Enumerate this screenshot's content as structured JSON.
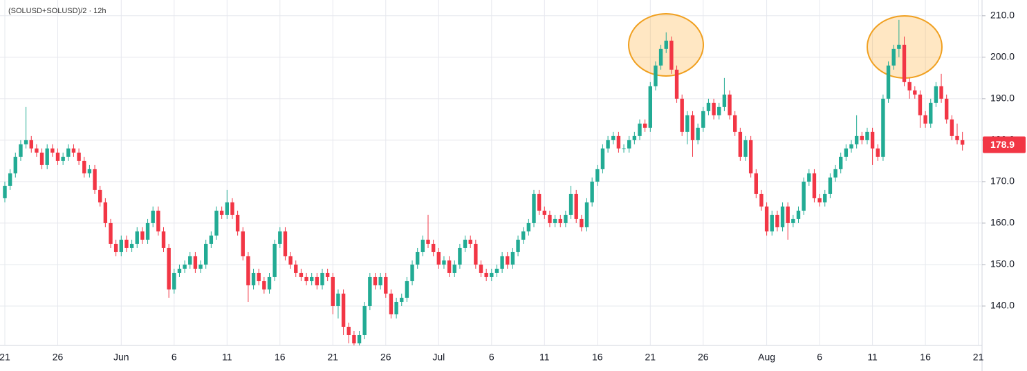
{
  "chart_data": {
    "type": "candlestick",
    "title": "(SOLUSD+SOLUSD)/2 · 12h",
    "up_color": "#22ab94",
    "down_color": "#f23645",
    "grid": true,
    "ylim": [
      130.5,
      213.8
    ],
    "yticks": [
      {
        "value": 140,
        "label": "140.0"
      },
      {
        "value": 150,
        "label": "150.0"
      },
      {
        "value": 160,
        "label": "160.0"
      },
      {
        "value": 170,
        "label": "170.0"
      },
      {
        "value": 180,
        "label": "180.0"
      },
      {
        "value": 190,
        "label": "190.0"
      },
      {
        "value": 200,
        "label": "200.0"
      },
      {
        "value": 210,
        "label": "210.0"
      }
    ],
    "categories": [
      "21",
      null,
      null,
      null,
      null,
      null,
      null,
      null,
      null,
      null,
      "26",
      null,
      null,
      null,
      null,
      null,
      null,
      null,
      null,
      null,
      null,
      null,
      "Jun",
      null,
      null,
      null,
      null,
      null,
      null,
      null,
      null,
      null,
      "6",
      null,
      null,
      null,
      null,
      null,
      null,
      null,
      null,
      null,
      "11",
      null,
      null,
      null,
      null,
      null,
      null,
      null,
      null,
      null,
      "16",
      null,
      null,
      null,
      null,
      null,
      null,
      null,
      null,
      null,
      "21",
      null,
      null,
      null,
      null,
      null,
      null,
      null,
      null,
      null,
      "26",
      null,
      null,
      null,
      null,
      null,
      null,
      null,
      null,
      null,
      "Jul",
      null,
      null,
      null,
      null,
      null,
      null,
      null,
      null,
      null,
      "6",
      null,
      null,
      null,
      null,
      null,
      null,
      null,
      null,
      null,
      "11",
      null,
      null,
      null,
      null,
      null,
      null,
      null,
      null,
      null,
      "16",
      null,
      null,
      null,
      null,
      null,
      null,
      null,
      null,
      null,
      "21",
      null,
      null,
      null,
      null,
      null,
      null,
      null,
      null,
      null,
      "26",
      null,
      null,
      null,
      null,
      null,
      null,
      null,
      null,
      null,
      null,
      null,
      "Aug",
      null,
      null,
      null,
      null,
      null,
      null,
      null,
      null,
      null,
      "6",
      null,
      null,
      null,
      null,
      null,
      null,
      null,
      null,
      null,
      "11",
      null,
      null,
      null,
      null,
      null,
      null,
      null,
      null,
      null,
      "16",
      null,
      null,
      null,
      null,
      null,
      null,
      null,
      null,
      null,
      "21"
    ],
    "open": [
      166,
      169,
      172,
      176,
      179,
      180,
      178,
      177,
      174,
      178,
      177,
      175,
      176,
      178,
      177,
      175,
      172,
      173,
      168,
      165,
      160,
      155,
      153,
      156,
      154,
      155,
      158,
      156,
      160,
      163,
      158,
      154,
      144,
      148,
      149,
      150,
      152,
      149,
      150,
      155,
      157,
      163,
      162,
      165,
      162,
      158,
      152,
      145,
      148,
      146,
      144,
      147,
      155,
      158,
      152,
      150,
      148,
      147,
      146,
      147,
      145,
      148,
      147,
      140,
      143,
      135,
      133,
      131,
      133,
      140,
      147,
      145,
      147,
      143,
      138,
      141,
      142,
      146,
      150,
      153,
      156,
      155,
      153,
      150,
      151,
      148,
      150,
      154,
      156,
      155,
      150,
      148,
      147,
      148,
      149,
      152,
      150,
      153,
      156,
      158,
      160,
      167,
      163,
      162,
      160,
      161,
      160,
      162,
      167,
      161,
      159,
      165,
      170,
      173,
      178,
      180,
      181,
      178,
      178,
      180,
      181,
      184,
      183,
      193,
      198,
      202,
      204,
      197,
      190,
      182,
      186,
      180,
      183,
      187,
      189,
      186,
      188,
      191,
      186,
      182,
      176,
      180,
      172,
      167,
      164,
      158,
      162,
      159,
      164,
      160,
      161,
      163,
      170,
      172,
      166,
      165,
      167,
      171,
      173,
      176,
      178,
      179,
      181,
      180,
      182,
      178,
      176,
      190,
      198,
      202,
      203,
      194,
      192,
      191,
      186,
      184,
      189,
      193,
      190,
      185,
      181,
      180,
      null,
      null,
      null
    ],
    "high": [
      170,
      173,
      177,
      180,
      188,
      181,
      179,
      178,
      179,
      179,
      178,
      177,
      179,
      179,
      178,
      176,
      174,
      174,
      169,
      166,
      161,
      156,
      157,
      157,
      156,
      159,
      159,
      161,
      164,
      164,
      159,
      155,
      149,
      150,
      151,
      153,
      153,
      151,
      156,
      158,
      164,
      164,
      168,
      166,
      163,
      159,
      153,
      149,
      149,
      147,
      148,
      156,
      159,
      159,
      153,
      151,
      149,
      148,
      148,
      148,
      149,
      149,
      148,
      144,
      144,
      136,
      134,
      134,
      141,
      148,
      148,
      148,
      148,
      144,
      142,
      143,
      147,
      151,
      154,
      157,
      162,
      156,
      154,
      152,
      152,
      151,
      155,
      157,
      157,
      156,
      151,
      149,
      149,
      150,
      153,
      153,
      154,
      157,
      159,
      161,
      168,
      168,
      164,
      163,
      162,
      162,
      163,
      169,
      168,
      162,
      166,
      171,
      174,
      179,
      181,
      182,
      182,
      179,
      181,
      182,
      185,
      185,
      194,
      199,
      203,
      206,
      205,
      198,
      191,
      187,
      187,
      184,
      188,
      190,
      190,
      189,
      195,
      192,
      187,
      183,
      181,
      181,
      173,
      168,
      165,
      163,
      163,
      165,
      165,
      162,
      164,
      171,
      173,
      173,
      167,
      168,
      172,
      174,
      177,
      179,
      180,
      186,
      182,
      183,
      183,
      179,
      191,
      199,
      203,
      209,
      205,
      195,
      193,
      192,
      187,
      190,
      194,
      196,
      191,
      186,
      184,
      182,
      null,
      null,
      null
    ],
    "low": [
      165,
      168,
      171,
      175,
      178,
      177,
      176,
      173,
      173,
      176,
      174,
      174,
      175,
      176,
      174,
      171,
      171,
      167,
      164,
      159,
      154,
      152,
      152,
      153,
      153,
      154,
      155,
      155,
      159,
      157,
      153,
      142,
      143,
      147,
      148,
      149,
      148,
      148,
      149,
      154,
      156,
      161,
      161,
      161,
      157,
      151,
      141,
      144,
      145,
      143,
      143,
      146,
      154,
      151,
      149,
      147,
      146,
      145,
      145,
      144,
      144,
      146,
      138,
      137,
      133,
      131,
      130.5,
      130.5,
      132,
      139,
      144,
      144,
      142,
      137,
      137,
      140,
      141,
      145,
      149,
      152,
      154,
      152,
      149,
      149,
      147,
      147,
      149,
      153,
      154,
      149,
      147,
      146,
      146,
      147,
      148,
      149,
      149,
      152,
      155,
      157,
      159,
      162,
      161,
      159,
      159,
      159,
      159,
      161,
      160,
      158,
      158,
      164,
      169,
      172,
      177,
      179,
      177,
      177,
      177,
      179,
      180,
      182,
      182,
      192,
      197,
      201,
      196,
      189,
      181,
      179,
      176,
      179,
      182,
      186,
      185,
      185,
      187,
      185,
      181,
      175,
      175,
      171,
      166,
      163,
      157,
      157,
      158,
      158,
      156,
      159,
      160,
      162,
      169,
      165,
      164,
      164,
      166,
      170,
      172,
      175,
      177,
      178,
      179,
      179,
      174,
      175,
      175,
      189,
      197,
      200,
      193,
      190,
      190,
      183,
      183,
      183,
      188,
      189,
      184,
      180,
      179,
      177.5,
      null,
      null,
      null
    ],
    "close": [
      169,
      172,
      176,
      179,
      180,
      178,
      177,
      174,
      178,
      177,
      175,
      176,
      178,
      177,
      175,
      172,
      173,
      168,
      165,
      160,
      155,
      153,
      156,
      154,
      155,
      158,
      156,
      160,
      163,
      158,
      154,
      144,
      148,
      149,
      150,
      152,
      149,
      150,
      155,
      157,
      163,
      162,
      165,
      162,
      158,
      152,
      145,
      148,
      146,
      144,
      147,
      155,
      158,
      152,
      150,
      148,
      147,
      146,
      147,
      145,
      148,
      147,
      140,
      143,
      135,
      133,
      131,
      133,
      140,
      147,
      145,
      147,
      143,
      138,
      141,
      142,
      146,
      150,
      153,
      156,
      155,
      153,
      150,
      151,
      148,
      150,
      154,
      156,
      155,
      150,
      148,
      147,
      148,
      149,
      152,
      150,
      153,
      156,
      158,
      160,
      167,
      163,
      162,
      160,
      161,
      160,
      162,
      167,
      161,
      159,
      165,
      170,
      173,
      178,
      180,
      181,
      178,
      178,
      180,
      181,
      184,
      183,
      193,
      198,
      202,
      204,
      197,
      190,
      182,
      186,
      180,
      183,
      187,
      189,
      186,
      188,
      191,
      186,
      182,
      176,
      180,
      172,
      167,
      164,
      158,
      162,
      159,
      164,
      160,
      161,
      163,
      170,
      172,
      166,
      165,
      167,
      171,
      173,
      176,
      178,
      179,
      181,
      180,
      182,
      178,
      176,
      190,
      198,
      202,
      203,
      194,
      192,
      191,
      186,
      184,
      189,
      193,
      190,
      185,
      181,
      180,
      178.9,
      null,
      null,
      null
    ]
  }
}
